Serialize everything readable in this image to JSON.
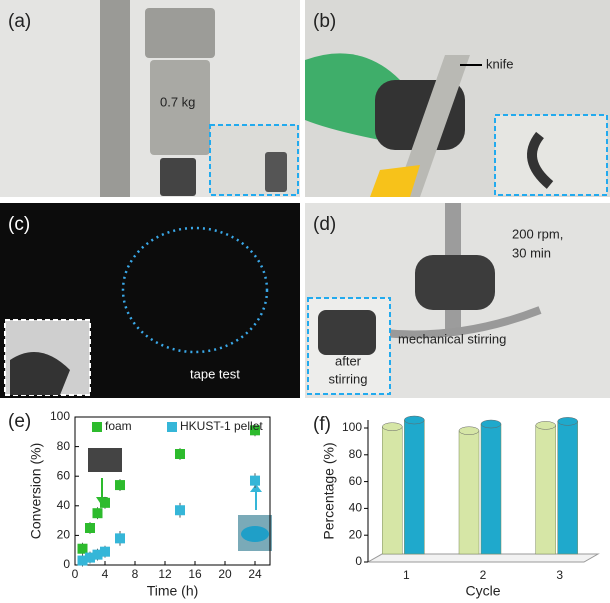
{
  "panels": [
    {
      "label": "(a)",
      "annotations": [
        "0.7 kg"
      ]
    },
    {
      "label": "(b)",
      "annotations": [
        "knife"
      ]
    },
    {
      "label": "(c)",
      "annotations": [
        "tape test"
      ]
    },
    {
      "label": "(d)",
      "annotations": [
        "200 rpm,",
        "30 min",
        "mechanical stirring",
        "after",
        "stirring"
      ]
    }
  ],
  "chart_data": [
    {
      "type": "scatter",
      "panel_label": "(e)",
      "xlabel": "Time (h)",
      "ylabel": "Conversion (%)",
      "xlim": [
        0,
        26
      ],
      "ylim": [
        0,
        100
      ],
      "xticks": [
        0,
        4,
        8,
        12,
        16,
        20,
        24
      ],
      "yticks": [
        0,
        20,
        40,
        60,
        80,
        100
      ],
      "series": [
        {
          "name": "foam",
          "color": "#2dbb2d",
          "x": [
            1,
            2,
            3,
            4,
            6,
            14,
            24
          ],
          "values": [
            11,
            25,
            35,
            42,
            54,
            75,
            91
          ],
          "errors": [
            4,
            4,
            4,
            4,
            4,
            4,
            4
          ]
        },
        {
          "name": "HKUST-1 pellet",
          "color": "#35b6d8",
          "x": [
            1,
            2,
            3,
            4,
            6,
            14,
            24
          ],
          "values": [
            3,
            5,
            7,
            9,
            18,
            37,
            57
          ],
          "errors": [
            4,
            4,
            4,
            4,
            5,
            5,
            5
          ]
        }
      ]
    },
    {
      "type": "bar",
      "panel_label": "(f)",
      "xlabel": "Cycle",
      "ylabel": "Percentage (%)",
      "categories": [
        "1",
        "2",
        "3"
      ],
      "ylim": [
        0,
        100
      ],
      "yticks": [
        0,
        20,
        40,
        60,
        80,
        100
      ],
      "series": [
        {
          "color": "#d6e6a6",
          "values": [
            95,
            92,
            96
          ]
        },
        {
          "color": "#1fa9cc",
          "values": [
            100,
            97,
            99
          ]
        }
      ]
    }
  ]
}
